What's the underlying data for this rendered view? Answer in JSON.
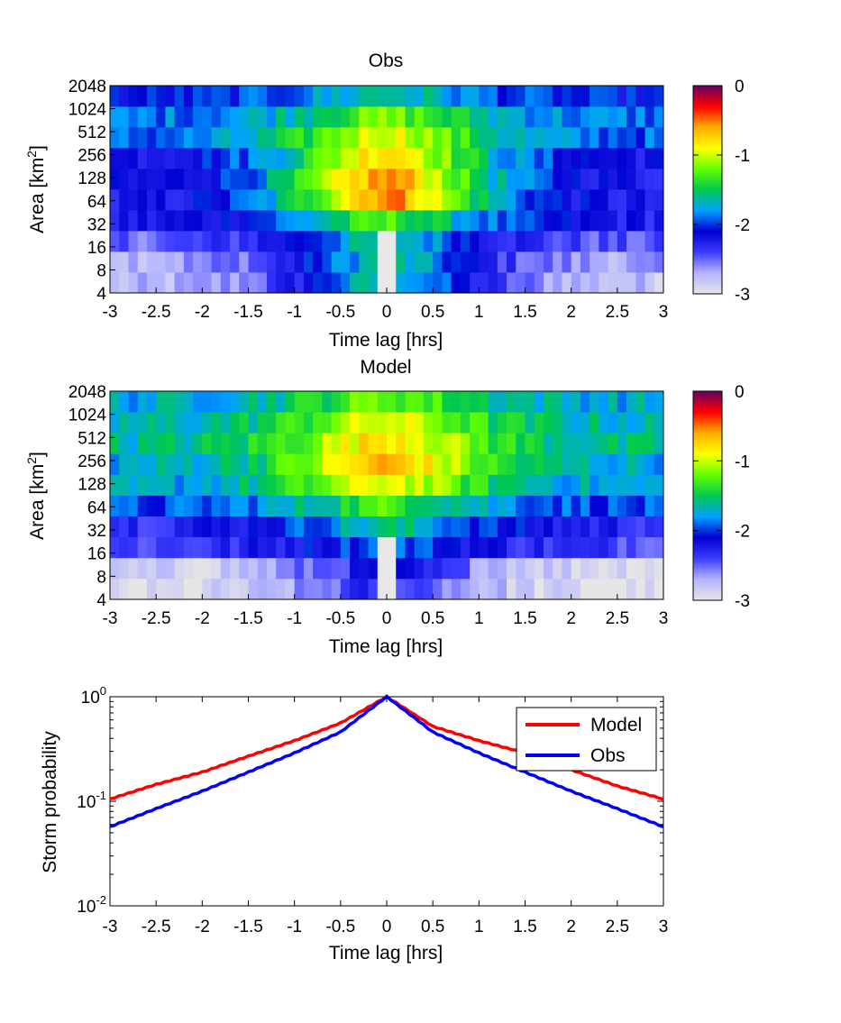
{
  "chart_data": [
    {
      "type": "heatmap",
      "title": "Obs",
      "xlabel": "Time lag [hrs]",
      "ylabel": "Area [km²]",
      "x_ticks": [
        "-3",
        "-2.5",
        "-2",
        "-1.5",
        "-1",
        "-0.5",
        "0",
        "0.5",
        "1",
        "1.5",
        "2",
        "2.5",
        "3"
      ],
      "y_ticks": [
        "4",
        "8",
        "16",
        "32",
        "64",
        "128",
        "256",
        "512",
        "1024",
        "2048"
      ],
      "xlim": [
        -3,
        3
      ],
      "y_scale": "log2",
      "colorbar": {
        "ticks": [
          "0",
          "-1",
          "-2",
          "-3"
        ],
        "clim": [
          -3,
          0
        ],
        "colormap": "jet-like with gray-white low end and purple top"
      },
      "rows": [
        {
          "area": 4,
          "peak": -1.6,
          "edge": -2.8
        },
        {
          "area": 8,
          "peak": -1.6,
          "edge": -2.7
        },
        {
          "area": 16,
          "peak": -1.6,
          "edge": -2.5
        },
        {
          "area": 32,
          "peak": -1.3,
          "edge": -2.25
        },
        {
          "area": 64,
          "peak": -0.5,
          "edge": -2.3
        },
        {
          "area": 128,
          "peak": -0.55,
          "edge": -2.25
        },
        {
          "area": 256,
          "peak": -0.7,
          "edge": -2.2
        },
        {
          "area": 512,
          "peak": -0.9,
          "edge": -1.95
        },
        {
          "area": 1024,
          "peak": -1.2,
          "edge": -1.9
        },
        {
          "area": 2048,
          "peak": -1.6,
          "edge": -2.1
        }
      ],
      "center_gap_below_area": 32
    },
    {
      "type": "heatmap",
      "title": "Model",
      "xlabel": "Time lag [hrs]",
      "ylabel": "Area [km²]",
      "x_ticks": [
        "-3",
        "-2.5",
        "-2",
        "-1.5",
        "-1",
        "-0.5",
        "0",
        "0.5",
        "1",
        "1.5",
        "2",
        "2.5",
        "3"
      ],
      "y_ticks": [
        "4",
        "8",
        "16",
        "32",
        "64",
        "128",
        "256",
        "512",
        "1024",
        "2048"
      ],
      "xlim": [
        -3,
        3
      ],
      "y_scale": "log2",
      "colorbar": {
        "ticks": [
          "0",
          "-1",
          "-2",
          "-3"
        ],
        "clim": [
          -3,
          0
        ],
        "colormap": "jet-like with gray-white low end and purple top"
      },
      "rows": [
        {
          "area": 4,
          "peak": -2.3,
          "edge": -3.0
        },
        {
          "area": 8,
          "peak": -2.2,
          "edge": -2.9
        },
        {
          "area": 16,
          "peak": -1.9,
          "edge": -2.4
        },
        {
          "area": 32,
          "peak": -1.6,
          "edge": -2.3
        },
        {
          "area": 64,
          "peak": -1.3,
          "edge": -2.0
        },
        {
          "area": 128,
          "peak": -0.9,
          "edge": -1.8
        },
        {
          "area": 256,
          "peak": -0.65,
          "edge": -1.75
        },
        {
          "area": 512,
          "peak": -0.75,
          "edge": -1.65
        },
        {
          "area": 1024,
          "peak": -0.95,
          "edge": -1.7
        },
        {
          "area": 2048,
          "peak": -1.2,
          "edge": -1.75
        }
      ],
      "center_gap_below_area": 32
    },
    {
      "type": "line",
      "xlabel": "Time lag [hrs]",
      "ylabel": "Storm probability",
      "x_ticks": [
        "-3",
        "-2.5",
        "-2",
        "-1.5",
        "-1",
        "-0.5",
        "0",
        "0.5",
        "1",
        "1.5",
        "2",
        "2.5",
        "3"
      ],
      "xlim": [
        -3,
        3
      ],
      "ylim": [
        0.01,
        1
      ],
      "y_scale": "log",
      "y_ticks": [
        "10^0",
        "10^-1",
        "10^-2"
      ],
      "legend_position": "top-right",
      "x": [
        -3,
        -2.5,
        -2,
        -1.5,
        -1,
        -0.5,
        0,
        0.5,
        1,
        1.5,
        2,
        2.5,
        3
      ],
      "series": [
        {
          "name": "Model",
          "color": "#ff0000",
          "values": [
            0.105,
            0.145,
            0.19,
            0.27,
            0.38,
            0.56,
            1.0,
            0.52,
            0.38,
            0.29,
            0.2,
            0.14,
            0.105
          ]
        },
        {
          "name": "Obs",
          "color": "#0000ff",
          "values": [
            0.057,
            0.085,
            0.125,
            0.19,
            0.29,
            0.46,
            1.0,
            0.46,
            0.29,
            0.19,
            0.125,
            0.085,
            0.057
          ]
        }
      ]
    }
  ]
}
